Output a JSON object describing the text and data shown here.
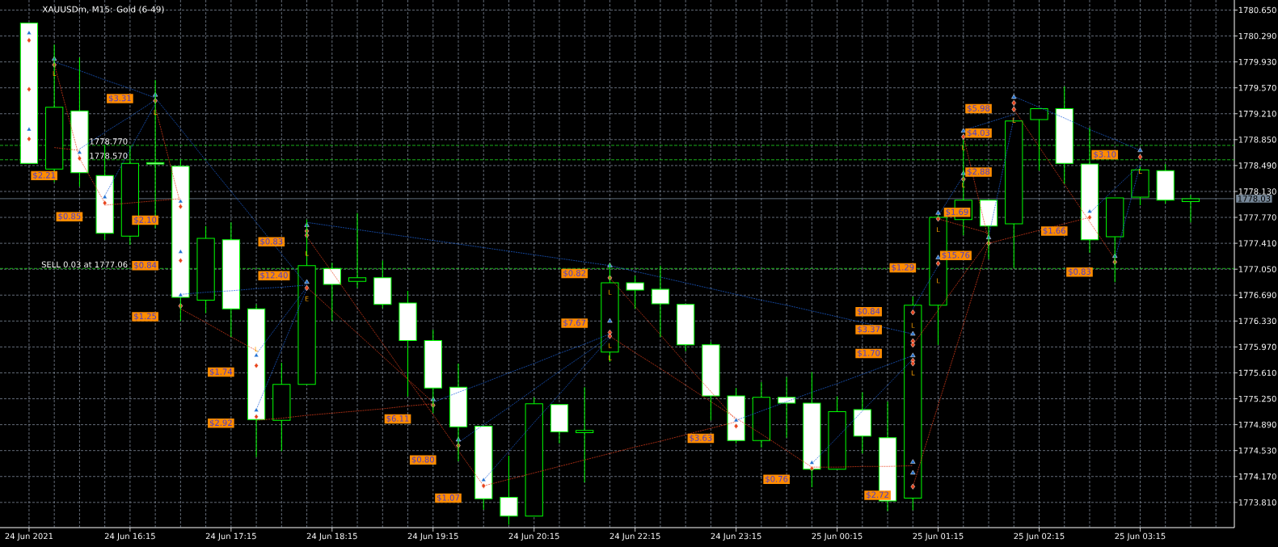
{
  "chart_data": {
    "type": "candlestick",
    "title": "XAUUSDm, M15: Gold (6-49)",
    "categories": [
      "24 Jun 2021",
      null,
      null,
      null,
      "24 Jun 16:15",
      null,
      null,
      null,
      "24 Jun 17:15",
      null,
      null,
      null,
      "24 Jun 18:15",
      null,
      null,
      null,
      "24 Jun 19:15",
      null,
      null,
      null,
      "24 Jun 20:15",
      null,
      null,
      null,
      "24 Jun 22:15",
      null,
      null,
      null,
      "24 Jun 23:15",
      null,
      null,
      null,
      "25 Jun 00:15",
      null,
      null,
      null,
      "25 Jun 01:15",
      null,
      null,
      null,
      "25 Jun 02:15",
      null,
      null,
      null,
      "25 Jun 03:15",
      null,
      null
    ],
    "ohlc": [
      [
        1780.47,
        1780.47,
        1778.52,
        1778.52
      ],
      [
        1778.44,
        1780.17,
        1778.26,
        1779.3
      ],
      [
        1779.25,
        1779.99,
        1778.2,
        1778.39
      ],
      [
        1778.35,
        1778.78,
        1777.46,
        1777.55
      ],
      [
        1777.51,
        1778.77,
        1777.39,
        1778.52
      ],
      [
        1778.53,
        1779.68,
        1777.62,
        1778.51
      ],
      [
        1778.48,
        1778.57,
        1776.33,
        1776.66
      ],
      [
        1776.62,
        1777.65,
        1776.44,
        1777.48
      ],
      [
        1777.46,
        1777.7,
        1776.11,
        1776.5
      ],
      [
        1776.5,
        1776.56,
        1774.44,
        1774.96
      ],
      [
        1774.95,
        1775.75,
        1774.52,
        1775.45
      ],
      [
        1775.45,
        1777.74,
        1775.45,
        1777.1
      ],
      [
        1777.06,
        1777.14,
        1776.33,
        1776.84
      ],
      [
        1776.88,
        1777.83,
        1776.79,
        1776.93
      ],
      [
        1776.93,
        1777.17,
        1776.51,
        1776.56
      ],
      [
        1776.58,
        1776.75,
        1775.28,
        1776.06
      ],
      [
        1776.06,
        1776.21,
        1775.05,
        1775.4
      ],
      [
        1775.41,
        1775.74,
        1774.38,
        1774.86
      ],
      [
        1774.87,
        1774.87,
        1773.71,
        1773.86
      ],
      [
        1773.88,
        1774.46,
        1773.5,
        1773.62
      ],
      [
        1773.62,
        1775.27,
        1773.62,
        1775.18
      ],
      [
        1775.17,
        1775.17,
        1774.63,
        1774.79
      ],
      [
        1774.78,
        1775.41,
        1774.09,
        1774.81
      ],
      [
        1775.9,
        1777.13,
        1775.76,
        1776.86
      ],
      [
        1776.86,
        1776.96,
        1776.5,
        1776.76
      ],
      [
        1776.77,
        1777.1,
        1776.11,
        1776.57
      ],
      [
        1776.56,
        1776.56,
        1775.91,
        1776.0
      ],
      [
        1776.0,
        1776.04,
        1774.95,
        1775.29
      ],
      [
        1775.29,
        1775.4,
        1774.63,
        1774.67
      ],
      [
        1774.67,
        1775.48,
        1774.57,
        1775.27
      ],
      [
        1775.27,
        1775.55,
        1774.71,
        1775.19
      ],
      [
        1775.19,
        1775.62,
        1774.02,
        1774.27
      ],
      [
        1774.27,
        1775.28,
        1774.27,
        1775.07
      ],
      [
        1775.1,
        1775.34,
        1774.49,
        1774.73
      ],
      [
        1774.71,
        1775.21,
        1773.69,
        1773.83
      ],
      [
        1773.87,
        1776.67,
        1773.7,
        1776.55
      ],
      [
        1776.55,
        1777.8,
        1776.0,
        1777.77
      ],
      [
        1777.74,
        1778.85,
        1777.52,
        1778.01
      ],
      [
        1778.01,
        1778.01,
        1777.19,
        1777.65
      ],
      [
        1777.68,
        1779.11,
        1777.07,
        1779.11
      ],
      [
        1779.13,
        1779.28,
        1778.42,
        1779.28
      ],
      [
        1779.28,
        1779.59,
        1778.24,
        1778.52
      ],
      [
        1778.51,
        1779.02,
        1777.28,
        1777.46
      ],
      [
        1777.5,
        1778.04,
        1776.87,
        1778.04
      ],
      [
        1778.05,
        1778.47,
        1777.94,
        1778.43
      ],
      [
        1778.42,
        1778.51,
        1777.96,
        1778.01
      ],
      [
        1777.99,
        1778.08,
        1777.7,
        1778.03
      ]
    ],
    "color": "#00ff00",
    "colors": [
      "#ffffff",
      "#000000",
      "#ffffff",
      "#ffffff",
      "#000000",
      "#ffffff",
      "#ffffff",
      "#000000",
      "#ffffff",
      "#ffffff",
      "#000000",
      "#000000",
      "#ffffff",
      "#000000",
      "#ffffff",
      "#ffffff",
      "#ffffff",
      "#ffffff",
      "#ffffff",
      "#ffffff",
      "#000000",
      "#ffffff",
      "#000000",
      "#000000",
      "#ffffff",
      "#ffffff",
      "#ffffff",
      "#ffffff",
      "#ffffff",
      "#000000",
      "#ffffff",
      "#ffffff",
      "#000000",
      "#ffffff",
      "#ffffff",
      "#000000",
      "#000000",
      "#000000",
      "#ffffff",
      "#000000",
      "#000000",
      "#ffffff",
      "#ffffff",
      "#000000",
      "#000000",
      "#ffffff",
      "#000000"
    ],
    "series": [
      {
        "type": "line",
        "color": "#1e64dc",
        "line_style": "dotted",
        "marker": "none",
        "values": [
          null,
          1779.93,
          1779.81,
          1779.68,
          1779.56,
          1779.43,
          1779.0,
          1778.56,
          1778.13,
          1777.7,
          1777.26,
          1776.83,
          null,
          null,
          null,
          null,
          1775.2,
          1775.34,
          1775.47,
          1775.61,
          1775.74,
          1775.88,
          1776.01,
          1776.15,
          null,
          null,
          null,
          null,
          1774.95,
          1775.08,
          1775.21,
          1775.34,
          1775.46,
          1775.59,
          1775.72,
          1775.85,
          null,
          1778.98,
          1779.09,
          1779.2,
          null,
          null,
          1777.83,
          1778.17,
          1778.5,
          null,
          null
        ]
      },
      {
        "type": "line",
        "color": "#1e64dc",
        "line_style": "dotted",
        "marker": "none",
        "values": [
          null,
          null,
          1778.72,
          1778.95,
          1779.17,
          1779.4,
          null,
          null,
          null,
          null,
          null,
          1777.7,
          1777.65,
          1777.6,
          1777.55,
          1777.5,
          1777.45,
          1777.4,
          1777.35,
          1777.3,
          1777.25,
          1777.2,
          1777.15,
          1777.1,
          1777.02,
          1776.94,
          1776.86,
          1776.78,
          1776.7,
          1776.62,
          1776.55,
          1776.47,
          1776.39,
          1776.31,
          1776.23,
          1776.15,
          null,
          null,
          1777.5,
          1779.15,
          null,
          null,
          null,
          1777.19,
          1778.5,
          null,
          null
        ]
      },
      {
        "type": "line",
        "color": "#1e64dc",
        "line_style": "dotted",
        "marker": "none",
        "values": [
          null,
          null,
          null,
          1778.07,
          1778.71,
          1779.35,
          null,
          null,
          null,
          1775.87,
          1776.34,
          1776.8,
          null,
          null,
          null,
          null,
          null,
          1774.64,
          1774.89,
          1775.13,
          1775.38,
          1775.63,
          1775.87,
          1776.12,
          null,
          null,
          null,
          null,
          null,
          null,
          null,
          1774.35,
          1774.71,
          1775.08,
          1775.44,
          1775.8,
          null,
          null,
          null,
          1779.45,
          1779.3,
          1779.15,
          1778.99,
          1778.85,
          1778.7,
          null,
          null
        ]
      },
      {
        "type": "line",
        "color": "#1e64dc",
        "line_style": "dotted",
        "marker": "none",
        "values": [
          null,
          null,
          null,
          null,
          null,
          null,
          1776.7,
          1776.73,
          1776.75,
          1776.78,
          1776.8,
          1776.83,
          null,
          null,
          null,
          null,
          null,
          null,
          1774.12,
          1774.52,
          1774.92,
          1775.31,
          1775.71,
          1776.1,
          null,
          null,
          null,
          null,
          null,
          null,
          null,
          null,
          null,
          null,
          null,
          1776.5,
          1777.1,
          null,
          null,
          null,
          null,
          null,
          null,
          null,
          null,
          null,
          null
        ]
      },
      {
        "type": "line",
        "color": "#1e64dc",
        "line_style": "dotted",
        "marker": "none",
        "values": [
          null,
          null,
          null,
          null,
          null,
          null,
          null,
          null,
          null,
          1775.1,
          1775.94,
          1776.78,
          null,
          null,
          null,
          null,
          null,
          null,
          null,
          null,
          null,
          null,
          null,
          null,
          null,
          null,
          null,
          null,
          null,
          null,
          null,
          null,
          null,
          null,
          null,
          null,
          1777.79,
          1778.35,
          null,
          null,
          null,
          null,
          null,
          null,
          null,
          null,
          null
        ]
      },
      {
        "type": "line",
        "color": "#e8401c",
        "line_style": "dotted",
        "marker": "none",
        "values": [
          null,
          1779.9,
          1778.59,
          1777.97,
          null,
          null,
          1776.5,
          1776.31,
          1776.11,
          1775.92,
          null,
          1776.8,
          1776.48,
          1776.16,
          1775.84,
          1775.52,
          1775.2,
          null,
          null,
          null,
          null,
          null,
          null,
          1776.93,
          1776.53,
          1776.14,
          1775.74,
          1775.35,
          1774.95,
          null,
          null,
          null,
          null,
          null,
          null,
          1774.03,
          1775.16,
          1776.28,
          1777.41,
          1777.5,
          1777.59,
          1777.68,
          1777.77,
          null,
          null,
          null,
          null
        ]
      },
      {
        "type": "line",
        "color": "#e8401c",
        "line_style": "dotted",
        "marker": "none",
        "values": [
          null,
          1778.74,
          1778.7,
          null,
          null,
          1779.3,
          1777.95,
          null,
          null,
          1774.95,
          1774.98,
          1775.02,
          1775.05,
          1775.08,
          1775.11,
          1775.15,
          1775.18,
          null,
          null,
          null,
          null,
          null,
          null,
          1776.12,
          1775.89,
          1775.67,
          1775.44,
          1775.21,
          1774.98,
          1774.76,
          1774.53,
          1774.3,
          1774.3,
          1774.31,
          1774.31,
          1774.32,
          null,
          null,
          null,
          1779.27,
          1778.75,
          1778.23,
          1777.71,
          1777.19,
          null,
          null,
          null
        ]
      },
      {
        "type": "line",
        "color": "#e8401c",
        "line_style": "dotted",
        "marker": "none",
        "values": [
          null,
          null,
          null,
          1777.94,
          1777.97,
          1778.0,
          1778.03,
          null,
          null,
          null,
          null,
          1777.5,
          1777.01,
          1776.51,
          1776.02,
          1775.52,
          1775.03,
          1774.53,
          1774.04,
          1774.13,
          1774.22,
          1774.31,
          1774.4,
          1774.49,
          1774.58,
          1774.66,
          1774.75,
          1774.84,
          1774.93,
          null,
          null,
          null,
          null,
          null,
          null,
          1776.0,
          1776.48,
          1776.97,
          1777.45,
          null,
          null,
          null,
          null,
          null,
          null,
          null,
          null
        ]
      },
      {
        "type": "line",
        "color": "#e8401c",
        "line_style": "dotted",
        "marker": "none",
        "values": [
          null,
          null,
          null,
          null,
          null,
          null,
          null,
          null,
          null,
          null,
          null,
          null,
          null,
          null,
          null,
          null,
          null,
          null,
          null,
          null,
          null,
          null,
          null,
          null,
          null,
          null,
          null,
          null,
          null,
          null,
          null,
          null,
          null,
          null,
          null,
          null,
          1777.75,
          1777.65,
          1777.55,
          null,
          null,
          null,
          null,
          null,
          null,
          null,
          null
        ]
      },
      {
        "type": "line",
        "color": "#e8401c",
        "line_style": "dotted",
        "marker": "none",
        "values": [
          null,
          null,
          null,
          null,
          null,
          null,
          null,
          null,
          null,
          null,
          null,
          null,
          null,
          null,
          null,
          null,
          null,
          null,
          null,
          null,
          null,
          null,
          null,
          null,
          null,
          null,
          null,
          null,
          null,
          null,
          null,
          null,
          null,
          null,
          null,
          null,
          null,
          1778.9,
          1777.45,
          null,
          null,
          null,
          null,
          null,
          null,
          null,
          null
        ]
      },
      {
        "type": "scatter",
        "color": "#1f6fd1",
        "marker": "triangle",
        "values": [
          1780.33,
          1779.97,
          1778.67,
          1778.05,
          null,
          1779.47,
          1777.99,
          null,
          null,
          1775.85,
          null,
          1777.66,
          null,
          null,
          null,
          null,
          1775.24,
          1774.68,
          1774.12,
          null,
          null,
          null,
          null,
          1777.1,
          null,
          null,
          null,
          null,
          1774.95,
          null,
          null,
          1774.36,
          null,
          null,
          null,
          1776.15,
          1777.83,
          1778.97,
          1777.49,
          1779.44,
          null,
          null,
          1777.85,
          1777.23,
          1778.7,
          null,
          null
        ]
      },
      {
        "type": "scatter",
        "color": "#1f6fd1",
        "marker": "triangle",
        "values": [
          1778.99,
          null,
          null,
          null,
          null,
          null,
          1777.29,
          null,
          null,
          1775.09,
          null,
          1776.87,
          null,
          null,
          null,
          null,
          null,
          null,
          null,
          null,
          null,
          null,
          null,
          1776.33,
          null,
          null,
          null,
          null,
          null,
          null,
          null,
          null,
          null,
          null,
          null,
          1775.85,
          1777.21,
          1778.38,
          null,
          null,
          null,
          null,
          null,
          null,
          null,
          null,
          null
        ]
      },
      {
        "type": "scatter",
        "color": "#1f6fd1",
        "marker": "triangle",
        "values": [
          null,
          null,
          null,
          null,
          null,
          null,
          1776.69,
          null,
          null,
          null,
          null,
          null,
          null,
          null,
          null,
          null,
          null,
          null,
          null,
          null,
          null,
          null,
          null,
          null,
          null,
          null,
          null,
          null,
          null,
          null,
          null,
          null,
          null,
          null,
          null,
          1774.37,
          null,
          null,
          null,
          null,
          null,
          null,
          null,
          null,
          null,
          null,
          null
        ]
      },
      {
        "type": "scatter",
        "color": "#1f6fd1",
        "marker": "triangle",
        "values": [
          null,
          null,
          null,
          null,
          null,
          null,
          null,
          null,
          null,
          null,
          null,
          null,
          null,
          null,
          null,
          null,
          null,
          null,
          null,
          null,
          null,
          null,
          null,
          null,
          null,
          null,
          null,
          null,
          null,
          null,
          null,
          null,
          null,
          null,
          null,
          1774.22,
          null,
          null,
          null,
          null,
          null,
          null,
          null,
          null,
          null,
          null,
          null
        ]
      },
      {
        "type": "scatter",
        "color": "#e8441c",
        "marker": "diamond",
        "values": [
          1780.23,
          1779.89,
          1778.59,
          1777.97,
          null,
          1779.39,
          1777.92,
          null,
          null,
          1775.71,
          null,
          1777.58,
          null,
          null,
          null,
          null,
          1775.16,
          1774.6,
          1774.04,
          null,
          null,
          null,
          null,
          1776.93,
          null,
          null,
          null,
          null,
          1774.87,
          null,
          null,
          1774.28,
          null,
          null,
          null,
          1776.45,
          1777.75,
          1778.89,
          1777.41,
          1779.36,
          null,
          null,
          1777.77,
          1777.15,
          1778.61,
          null,
          null
        ]
      },
      {
        "type": "scatter",
        "color": "#e8441c",
        "marker": "diamond",
        "values": [
          1779.55,
          null,
          null,
          null,
          null,
          null,
          1777.17,
          null,
          null,
          1775.0,
          null,
          1777.52,
          null,
          null,
          null,
          null,
          null,
          null,
          null,
          null,
          null,
          null,
          null,
          1776.17,
          null,
          null,
          null,
          null,
          null,
          null,
          null,
          null,
          null,
          null,
          null,
          1776.05,
          1777.13,
          1778.3,
          null,
          1779.27,
          null,
          null,
          null,
          null,
          null,
          null,
          null
        ]
      },
      {
        "type": "scatter",
        "color": "#e8441c",
        "marker": "diamond",
        "values": [
          1778.86,
          null,
          null,
          null,
          null,
          null,
          1776.54,
          null,
          null,
          null,
          null,
          1776.79,
          null,
          null,
          null,
          null,
          null,
          null,
          null,
          null,
          null,
          null,
          null,
          1776.12,
          null,
          null,
          null,
          null,
          null,
          null,
          null,
          null,
          null,
          null,
          null,
          1776.0,
          null,
          null,
          null,
          null,
          null,
          null,
          null,
          null,
          null,
          null,
          null
        ]
      },
      {
        "type": "scatter",
        "color": "#e8441c",
        "marker": "diamond",
        "values": [
          null,
          null,
          null,
          null,
          null,
          null,
          null,
          null,
          null,
          null,
          null,
          null,
          null,
          null,
          null,
          null,
          null,
          null,
          null,
          null,
          null,
          null,
          null,
          null,
          null,
          null,
          null,
          null,
          null,
          null,
          null,
          null,
          null,
          null,
          null,
          1775.78,
          null,
          null,
          null,
          null,
          null,
          null,
          null,
          null,
          null,
          null,
          null
        ]
      },
      {
        "type": "scatter",
        "color": "#e8441c",
        "marker": "diamond",
        "values": [
          null,
          null,
          null,
          null,
          null,
          null,
          null,
          null,
          null,
          null,
          null,
          null,
          null,
          null,
          null,
          null,
          null,
          null,
          null,
          null,
          null,
          null,
          null,
          null,
          null,
          null,
          null,
          null,
          null,
          null,
          null,
          null,
          null,
          null,
          null,
          1775.74,
          null,
          null,
          null,
          null,
          null,
          null,
          null,
          null,
          null,
          null,
          null
        ]
      },
      {
        "type": "scatter",
        "color": "#e8441c",
        "marker": "diamond",
        "values": [
          null,
          null,
          null,
          null,
          null,
          null,
          null,
          null,
          null,
          null,
          null,
          null,
          null,
          null,
          null,
          null,
          null,
          null,
          null,
          null,
          null,
          null,
          null,
          null,
          null,
          null,
          null,
          null,
          null,
          null,
          null,
          null,
          null,
          null,
          null,
          1774.03,
          null,
          null,
          null,
          null,
          null,
          null,
          null,
          null,
          null,
          null,
          null
        ]
      }
    ],
    "ylim": [
      1773.46,
      1780.79
    ],
    "yticks": [
      {
        "value": 1773.81,
        "label": "1773.810"
      },
      {
        "value": 1774.17,
        "label": "1774.170"
      },
      {
        "value": 1774.53,
        "label": "1774.530"
      },
      {
        "value": 1774.89,
        "label": "1774.890"
      },
      {
        "value": 1775.25,
        "label": "1775.250"
      },
      {
        "value": 1775.61,
        "label": "1775.610"
      },
      {
        "value": 1775.97,
        "label": "1775.970"
      },
      {
        "value": 1776.33,
        "label": "1776.330"
      },
      {
        "value": 1776.69,
        "label": "1776.690"
      },
      {
        "value": 1777.05,
        "label": "1777.050"
      },
      {
        "value": 1777.41,
        "label": "1777.410"
      },
      {
        "value": 1777.77,
        "label": "1777.770"
      },
      {
        "value": 1778.13,
        "label": "1778.130"
      },
      {
        "value": 1778.49,
        "label": "1778.490"
      },
      {
        "value": 1778.85,
        "label": "1778.850"
      },
      {
        "value": 1779.21,
        "label": "1779.210"
      },
      {
        "value": 1779.57,
        "label": "1779.570"
      },
      {
        "value": 1779.93,
        "label": "1779.930"
      },
      {
        "value": 1780.29,
        "label": "1780.290"
      },
      {
        "value": 1780.65,
        "label": "1780.650"
      }
    ],
    "grid": true,
    "ref_lines": [
      {
        "axis": "y",
        "value": 1778.03,
        "label": "1778.03",
        "color": "#778899",
        "line_style": "solid"
      },
      {
        "axis": "y",
        "value": 1778.77,
        "label": "1778.770",
        "color": "#22dd22",
        "line_style": "dashed"
      },
      {
        "axis": "y",
        "value": 1778.57,
        "label": "1778.570",
        "color": "#22dd22",
        "line_style": "dashed"
      },
      {
        "axis": "y",
        "value": 1777.06,
        "label": "SELL 0.03 at 1777.06",
        "color": "#22dd22",
        "line_style": "dashed"
      }
    ],
    "annotations": [
      "$3.31",
      "$2.21",
      "$0.85",
      "$2.10",
      "$0.83",
      "$0.84",
      "$12.40",
      "$1.25",
      "$1.74",
      "$2.92",
      "$6.11",
      "$0.80",
      "$1.07",
      "$0.82",
      "$7.67",
      "$3.63",
      "$0.76",
      "$0.84",
      "$3.37",
      "$1.70",
      "$2.72",
      "$1.29",
      "$15.76",
      "$1.69",
      "$2.88",
      "$4.03",
      "$5.98",
      "$1.66",
      "$3.10",
      "$0.83",
      "L",
      "L",
      "L",
      "L",
      "E",
      "L",
      "L",
      "L",
      "L",
      "L",
      "L",
      "L",
      "L",
      "L",
      "L",
      "L"
    ]
  }
}
